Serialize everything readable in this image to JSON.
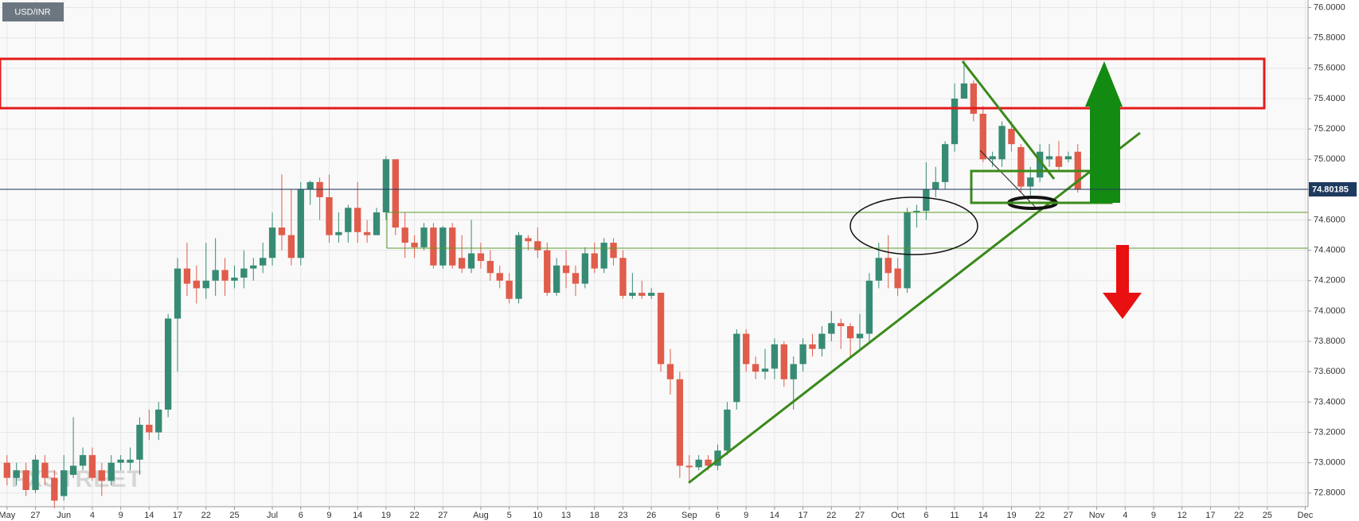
{
  "chart_data": {
    "type": "candlestick",
    "symbol": "USD/INR",
    "watermark": "FXSTREET",
    "up_color": "#378b74",
    "down_color": "#e05c4b",
    "grid": true,
    "ylim": [
      72.71,
      76.05
    ],
    "yticks": [
      {
        "value": 72.8,
        "label": "72.8000"
      },
      {
        "value": 73.0,
        "label": "73.0000"
      },
      {
        "value": 73.2,
        "label": "73.2000"
      },
      {
        "value": 73.4,
        "label": "73.4000"
      },
      {
        "value": 73.6,
        "label": "73.6000"
      },
      {
        "value": 73.8,
        "label": "73.8000"
      },
      {
        "value": 74.0,
        "label": "74.0000"
      },
      {
        "value": 74.2,
        "label": "74.2000"
      },
      {
        "value": 74.4,
        "label": "74.4000"
      },
      {
        "value": 74.6,
        "label": "74.6000"
      },
      {
        "value": 74.8,
        "label": "74.8000"
      },
      {
        "value": 75.0,
        "label": "75.0000"
      },
      {
        "value": 75.2,
        "label": "75.2000"
      },
      {
        "value": 75.4,
        "label": "75.4000"
      },
      {
        "value": 75.6,
        "label": "75.6000"
      },
      {
        "value": 75.8,
        "label": "75.8000"
      },
      {
        "value": 76.0,
        "label": "76.0000"
      }
    ],
    "xlim": [
      -0.74,
      137.3
    ],
    "xticks": [
      {
        "value": 0,
        "label": "May"
      },
      {
        "value": 3,
        "label": "27"
      },
      {
        "value": 6,
        "label": "Jun"
      },
      {
        "value": 9,
        "label": "4"
      },
      {
        "value": 12,
        "label": "9"
      },
      {
        "value": 15,
        "label": "14"
      },
      {
        "value": 18,
        "label": "17"
      },
      {
        "value": 21,
        "label": "22"
      },
      {
        "value": 24,
        "label": "25"
      },
      {
        "value": 28,
        "label": "Jul"
      },
      {
        "value": 31,
        "label": "6"
      },
      {
        "value": 34,
        "label": "9"
      },
      {
        "value": 37,
        "label": "14"
      },
      {
        "value": 40,
        "label": "19"
      },
      {
        "value": 43,
        "label": "22"
      },
      {
        "value": 46,
        "label": "27"
      },
      {
        "value": 50,
        "label": "Aug"
      },
      {
        "value": 53,
        "label": "5"
      },
      {
        "value": 56,
        "label": "10"
      },
      {
        "value": 59,
        "label": "13"
      },
      {
        "value": 62,
        "label": "18"
      },
      {
        "value": 65,
        "label": "23"
      },
      {
        "value": 68,
        "label": "26"
      },
      {
        "value": 72,
        "label": "Sep"
      },
      {
        "value": 75,
        "label": "6"
      },
      {
        "value": 78,
        "label": "9"
      },
      {
        "value": 81,
        "label": "14"
      },
      {
        "value": 84,
        "label": "17"
      },
      {
        "value": 87,
        "label": "22"
      },
      {
        "value": 90,
        "label": "27"
      },
      {
        "value": 94,
        "label": "Oct"
      },
      {
        "value": 97,
        "label": "6"
      },
      {
        "value": 100,
        "label": "11"
      },
      {
        "value": 103,
        "label": "14"
      },
      {
        "value": 106,
        "label": "19"
      },
      {
        "value": 109,
        "label": "22"
      },
      {
        "value": 112,
        "label": "27"
      },
      {
        "value": 115,
        "label": "Nov"
      },
      {
        "value": 118,
        "label": "4"
      },
      {
        "value": 121,
        "label": "9"
      },
      {
        "value": 124,
        "label": "12"
      },
      {
        "value": 127,
        "label": "17"
      },
      {
        "value": 130,
        "label": "22"
      },
      {
        "value": 133,
        "label": "25"
      },
      {
        "value": 137,
        "label": "Dec"
      }
    ],
    "last_price": 74.80185,
    "x": [
      0,
      1,
      2,
      3,
      4,
      5,
      6,
      7,
      8,
      9,
      10,
      11,
      12,
      13,
      14,
      15,
      16,
      17,
      18,
      19,
      20,
      21,
      22,
      23,
      24,
      25,
      26,
      27,
      28,
      29,
      30,
      31,
      32,
      33,
      34,
      35,
      36,
      37,
      38,
      39,
      40,
      41,
      42,
      43,
      44,
      45,
      46,
      47,
      48,
      49,
      50,
      51,
      52,
      53,
      54,
      55,
      56,
      57,
      58,
      59,
      60,
      61,
      62,
      63,
      64,
      65,
      66,
      67,
      68,
      69,
      70,
      71,
      72,
      73,
      74,
      75,
      76,
      77,
      78,
      79,
      80,
      81,
      82,
      83,
      84,
      85,
      86,
      87,
      88,
      89,
      90,
      91,
      92,
      93,
      94,
      95,
      96,
      97,
      98,
      99,
      100,
      101,
      102,
      103,
      104,
      105,
      106,
      107,
      108,
      109,
      110,
      111,
      112,
      113
    ],
    "candles": {
      "open": [
        73.0,
        72.9,
        72.95,
        72.82,
        73.0,
        72.9,
        72.78,
        72.92,
        72.98,
        73.05,
        72.95,
        72.88,
        73.0,
        73.0,
        73.02,
        73.25,
        73.2,
        73.35,
        73.95,
        74.28,
        74.2,
        74.15,
        74.2,
        74.27,
        74.2,
        74.22,
        74.28,
        74.3,
        74.35,
        74.55,
        74.5,
        74.35,
        74.8,
        74.85,
        74.75,
        74.5,
        74.52,
        74.68,
        74.52,
        74.5,
        74.65,
        75.0,
        74.55,
        74.45,
        74.42,
        74.55,
        74.3,
        74.55,
        74.35,
        74.28,
        74.38,
        74.33,
        74.25,
        74.2,
        74.08,
        74.48,
        74.46,
        74.4,
        74.12,
        74.3,
        74.25,
        74.18,
        74.38,
        74.28,
        74.45,
        74.35,
        74.1,
        74.12,
        74.1,
        74.12,
        73.65,
        73.55,
        72.98,
        72.97,
        73.02,
        72.98,
        73.08,
        73.4,
        73.85,
        73.65,
        73.6,
        73.62,
        73.78,
        73.55,
        73.65,
        73.78,
        73.75,
        73.85,
        73.92,
        73.9,
        73.82,
        73.85,
        74.2,
        74.35,
        74.28,
        74.15,
        74.65,
        74.66,
        74.8,
        74.85,
        75.1,
        75.4,
        75.5,
        75.3,
        75.0,
        75.0,
        75.2,
        75.08,
        74.82,
        74.88,
        75.0,
        75.02,
        75.0,
        75.05
      ],
      "high": [
        73.05,
        73.0,
        73.0,
        73.05,
        73.05,
        72.95,
        73.05,
        73.3,
        73.1,
        73.1,
        73.0,
        73.05,
        73.05,
        73.1,
        73.3,
        73.35,
        73.4,
        73.98,
        74.35,
        74.45,
        74.3,
        74.45,
        74.48,
        74.35,
        74.3,
        74.4,
        74.35,
        74.45,
        74.65,
        74.9,
        74.8,
        74.85,
        74.86,
        74.88,
        74.9,
        74.65,
        74.7,
        74.85,
        74.6,
        74.68,
        75.02,
        75.0,
        74.65,
        74.5,
        74.58,
        74.58,
        74.56,
        74.58,
        74.5,
        74.6,
        74.45,
        74.4,
        74.3,
        74.25,
        74.52,
        74.5,
        74.55,
        74.45,
        74.35,
        74.4,
        74.3,
        74.42,
        74.45,
        74.48,
        74.48,
        74.4,
        74.25,
        74.2,
        74.15,
        74.12,
        73.75,
        73.6,
        73.05,
        73.05,
        73.05,
        73.12,
        73.4,
        73.88,
        73.88,
        73.7,
        73.75,
        73.82,
        73.8,
        73.7,
        73.82,
        73.85,
        73.9,
        74.0,
        73.95,
        73.92,
        73.98,
        74.25,
        74.45,
        74.5,
        74.35,
        74.68,
        74.7,
        74.98,
        74.95,
        75.12,
        75.5,
        75.65,
        75.52,
        75.35,
        75.05,
        75.25,
        75.25,
        75.1,
        74.95,
        75.1,
        75.1,
        75.12,
        75.05,
        75.1
      ],
      "low": [
        72.85,
        72.85,
        72.78,
        72.8,
        72.85,
        72.7,
        72.75,
        72.9,
        72.95,
        72.88,
        72.78,
        72.85,
        72.95,
        72.95,
        72.92,
        73.15,
        73.15,
        73.3,
        73.6,
        74.1,
        74.05,
        74.08,
        74.1,
        74.1,
        74.15,
        74.15,
        74.2,
        74.25,
        74.3,
        74.4,
        74.3,
        74.3,
        74.7,
        74.6,
        74.45,
        74.45,
        74.45,
        74.45,
        74.45,
        74.5,
        74.6,
        74.5,
        74.35,
        74.35,
        74.4,
        74.28,
        74.28,
        74.28,
        74.25,
        74.25,
        74.28,
        74.2,
        74.15,
        74.05,
        74.05,
        74.4,
        74.35,
        74.1,
        74.1,
        74.15,
        74.1,
        74.15,
        74.25,
        74.25,
        74.3,
        74.08,
        74.08,
        74.08,
        74.08,
        73.6,
        73.45,
        72.9,
        72.88,
        72.95,
        72.95,
        72.95,
        73.05,
        73.35,
        73.6,
        73.55,
        73.55,
        73.55,
        73.5,
        73.35,
        73.6,
        73.7,
        73.7,
        73.8,
        73.75,
        73.7,
        73.75,
        73.8,
        74.15,
        74.15,
        74.1,
        74.12,
        74.55,
        74.6,
        74.75,
        74.8,
        75.05,
        75.4,
        75.25,
        74.98,
        74.95,
        74.95,
        75.05,
        74.78,
        74.75,
        74.85,
        74.95,
        74.92,
        74.98,
        74.78
      ],
      "close": [
        72.9,
        72.95,
        72.82,
        73.02,
        72.9,
        72.75,
        72.95,
        72.98,
        73.05,
        72.9,
        72.88,
        73.0,
        73.02,
        73.02,
        73.25,
        73.2,
        73.35,
        73.95,
        74.28,
        74.18,
        74.15,
        74.2,
        74.27,
        74.2,
        74.22,
        74.28,
        74.3,
        74.35,
        74.55,
        74.5,
        74.35,
        74.8,
        74.85,
        74.75,
        74.5,
        74.52,
        74.68,
        74.52,
        74.5,
        74.65,
        75.0,
        74.55,
        74.45,
        74.42,
        74.55,
        74.3,
        74.55,
        74.3,
        74.28,
        74.38,
        74.33,
        74.25,
        74.2,
        74.08,
        74.5,
        74.46,
        74.4,
        74.12,
        74.3,
        74.25,
        74.18,
        74.38,
        74.28,
        74.45,
        74.35,
        74.1,
        74.12,
        74.1,
        74.12,
        73.65,
        73.55,
        72.98,
        72.97,
        73.02,
        72.98,
        73.08,
        73.35,
        73.85,
        73.65,
        73.6,
        73.62,
        73.78,
        73.55,
        73.65,
        73.78,
        73.75,
        73.85,
        73.92,
        73.9,
        73.82,
        73.85,
        74.2,
        74.35,
        74.25,
        74.15,
        74.65,
        74.66,
        74.8,
        74.85,
        75.1,
        75.4,
        75.5,
        75.3,
        75.0,
        75.02,
        75.22,
        75.1,
        74.82,
        74.88,
        75.05,
        75.02,
        74.95,
        75.02,
        74.8
      ]
    }
  }
}
